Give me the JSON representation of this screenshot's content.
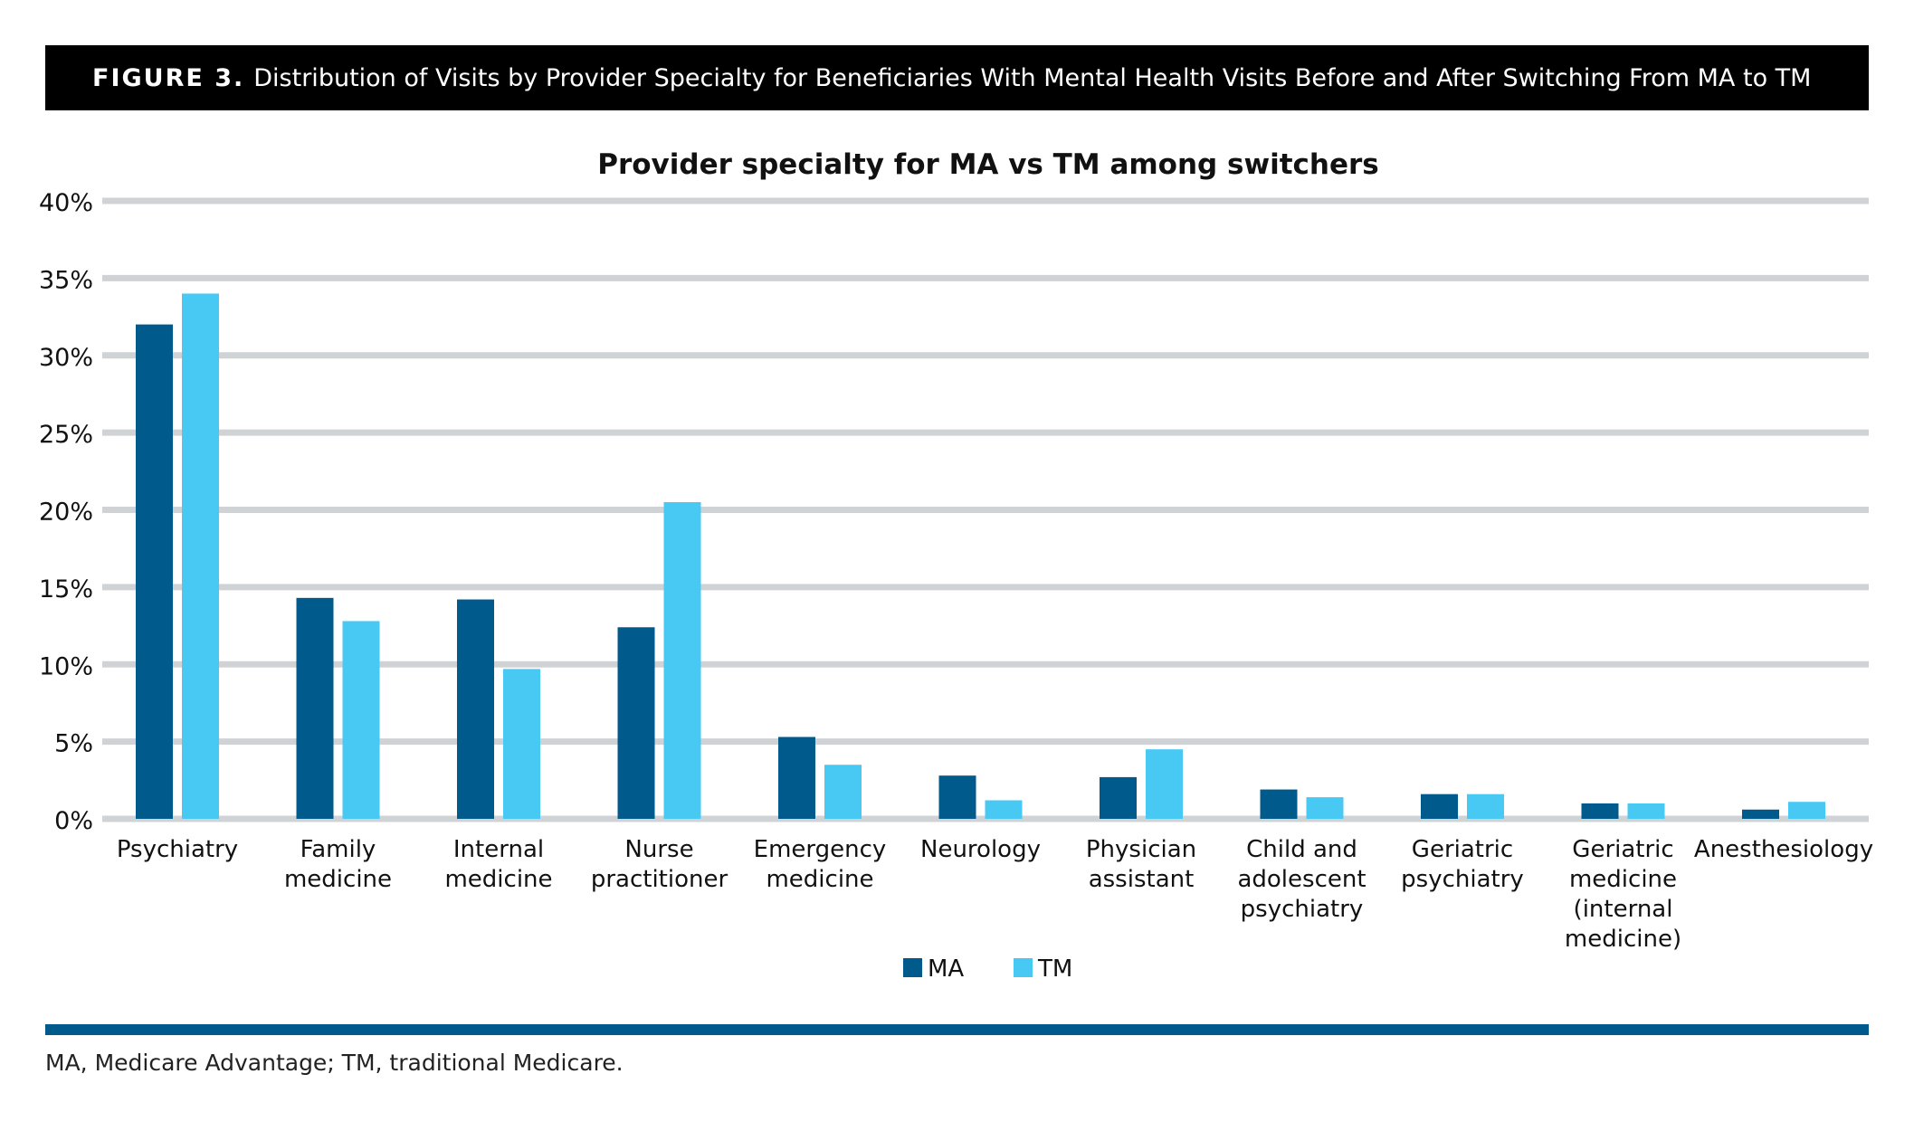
{
  "figure": {
    "label": "FIGURE 3.",
    "caption": "Distribution of Visits by Provider Specialty for Beneficiaries With Mental Health Visits Before and After Switching From MA to TM"
  },
  "footnote": "MA, Medicare Advantage; TM, traditional Medicare.",
  "colors": {
    "header_bg": "#000000",
    "ma": "#005a8c",
    "tm": "#47c9f4",
    "grid": "#d0d3d6",
    "rule": "#005a8c"
  },
  "chart_data": {
    "type": "bar",
    "title": "Provider specialty for MA vs TM among switchers",
    "xlabel": "",
    "ylabel": "",
    "ylim": [
      0,
      40
    ],
    "yticks": [
      0,
      5,
      10,
      15,
      20,
      25,
      30,
      35,
      40
    ],
    "ytick_labels": [
      "0%",
      "5%",
      "10%",
      "15%",
      "20%",
      "25%",
      "30%",
      "35%",
      "40%"
    ],
    "grid": true,
    "legend_position": "bottom-center",
    "categories": [
      [
        "Psychiatry"
      ],
      [
        "Family",
        "medicine"
      ],
      [
        "Internal",
        "medicine"
      ],
      [
        "Nurse",
        "practitioner"
      ],
      [
        "Emergency",
        "medicine"
      ],
      [
        "Neurology"
      ],
      [
        "Physician",
        "assistant"
      ],
      [
        "Child and",
        "adolescent",
        "psychiatry"
      ],
      [
        "Geriatric",
        "psychiatry"
      ],
      [
        "Geriatric",
        "medicine",
        "(internal",
        "medicine)"
      ],
      [
        "Anesthesiology"
      ]
    ],
    "series": [
      {
        "name": "MA",
        "color": "#005a8c",
        "values": [
          32.0,
          14.3,
          14.2,
          12.4,
          5.3,
          2.8,
          2.7,
          1.9,
          1.6,
          1.0,
          0.6
        ]
      },
      {
        "name": "TM",
        "color": "#47c9f4",
        "values": [
          34.0,
          12.8,
          9.7,
          20.5,
          3.5,
          1.2,
          4.5,
          1.4,
          1.6,
          1.0,
          1.1
        ]
      }
    ]
  }
}
